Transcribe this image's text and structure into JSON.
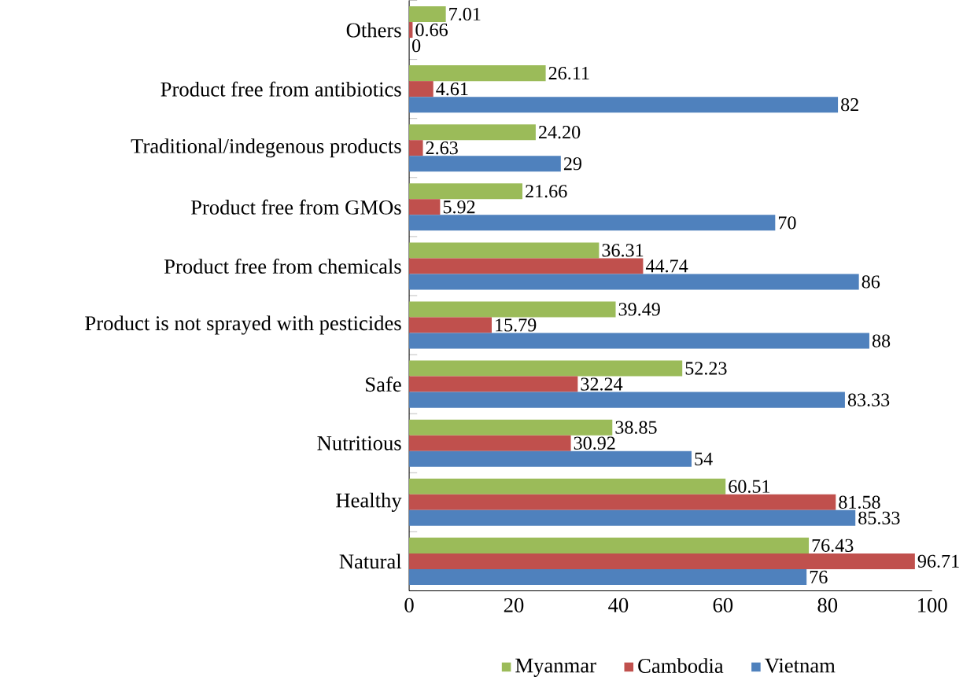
{
  "chart_data": {
    "type": "bar",
    "orientation": "horizontal",
    "categories": [
      "Others",
      "Product free from antibiotics",
      "Traditional/indegenous products",
      "Product free from GMOs",
      "Product free from chemicals",
      "Product is not sprayed with pesticides",
      "Safe",
      "Nutritious",
      "Healthy",
      "Natural"
    ],
    "series": [
      {
        "name": "Myanmar",
        "color": "#9bbb59",
        "values": [
          7.01,
          26.11,
          24.2,
          21.66,
          36.31,
          39.49,
          52.23,
          38.85,
          60.51,
          76.43
        ],
        "value_labels": [
          "7.01",
          "26.11",
          "24.20",
          "21.66",
          "36.31",
          "39.49",
          "52.23",
          "38.85",
          "60.51",
          "76.43"
        ]
      },
      {
        "name": "Cambodia",
        "color": "#c0504d",
        "values": [
          0.66,
          4.61,
          2.63,
          5.92,
          44.74,
          15.79,
          32.24,
          30.92,
          81.58,
          96.71
        ],
        "value_labels": [
          "0.66",
          "4.61",
          "2.63",
          "5.92",
          "44.74",
          "15.79",
          "32.24",
          "30.92",
          "81.58",
          "96.71"
        ]
      },
      {
        "name": "Vietnam",
        "color": "#4f81bd",
        "values": [
          0,
          82,
          29,
          70,
          86,
          88,
          83.33,
          54,
          85.33,
          76
        ],
        "value_labels": [
          "0",
          "82",
          "29",
          "70",
          "86",
          "88",
          "83.33",
          "54",
          "85.33",
          "76"
        ]
      }
    ],
    "xlim": [
      0,
      100
    ],
    "xticks": [
      0,
      20,
      40,
      60,
      80,
      100
    ],
    "legend": "bottom"
  }
}
